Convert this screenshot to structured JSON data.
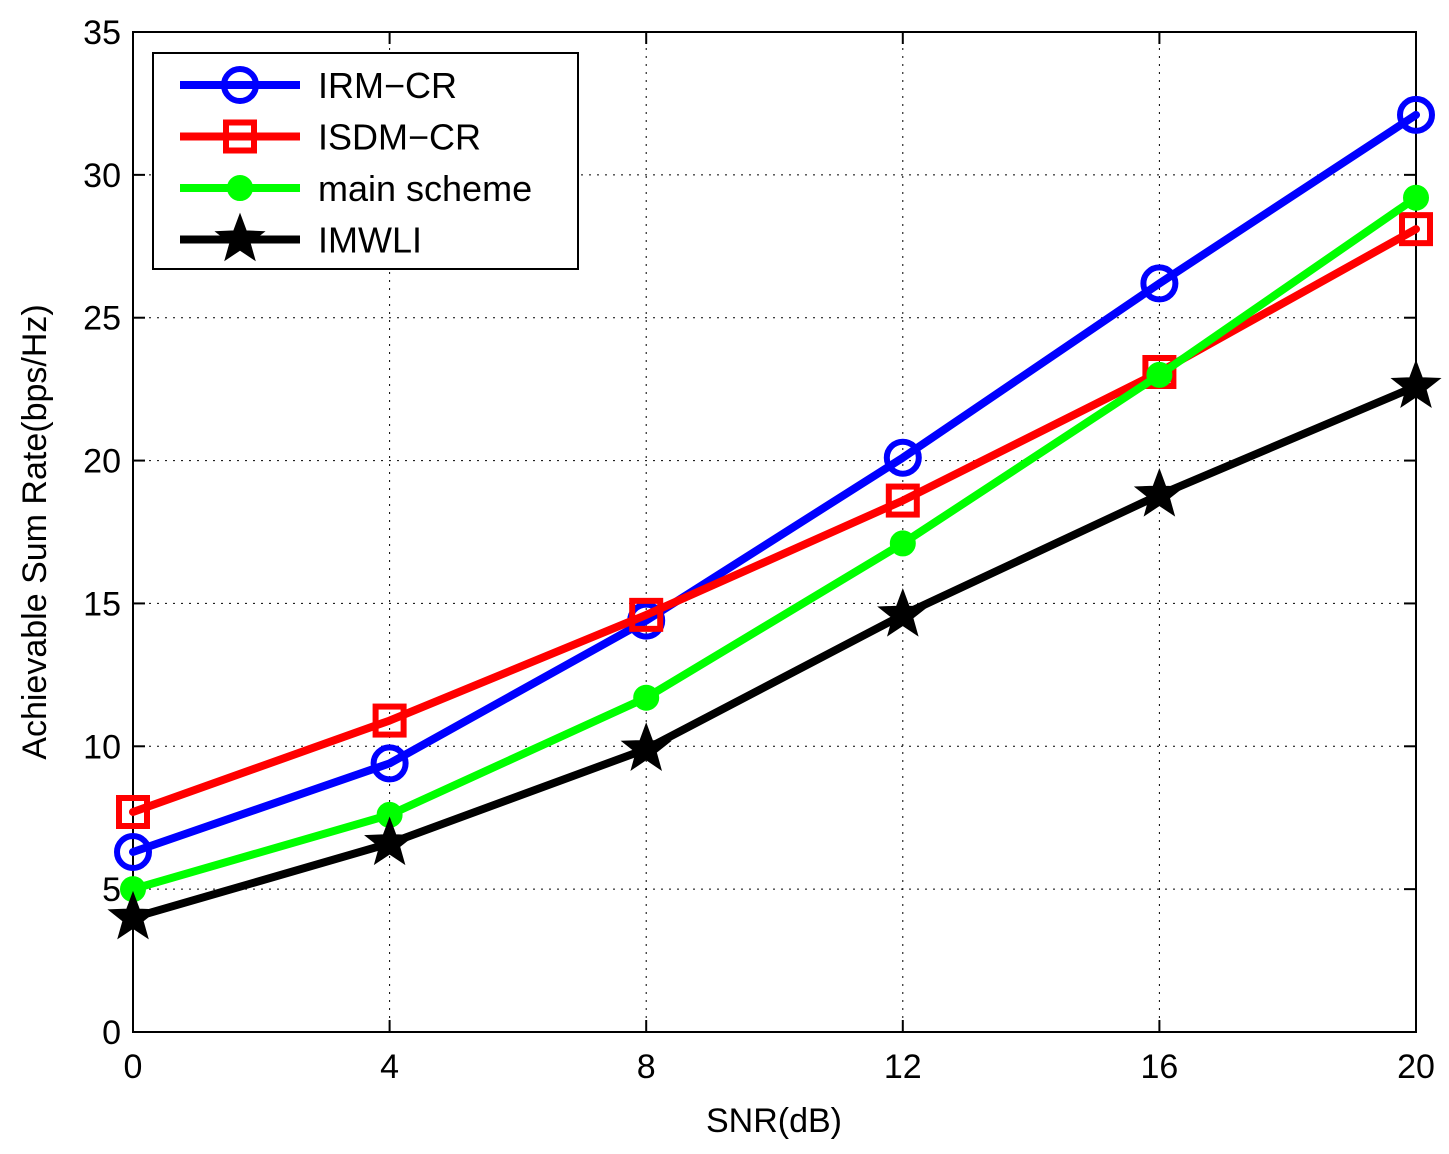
{
  "chart_data": {
    "type": "line",
    "title": "",
    "xlabel": "SNR(dB)",
    "ylabel": "Achievable Sum Rate(bps/Hz)",
    "x": [
      0,
      4,
      8,
      12,
      16,
      20
    ],
    "xlim": [
      0,
      20
    ],
    "ylim": [
      0,
      35
    ],
    "xticks": [
      "0",
      "4",
      "8",
      "12",
      "16",
      "20"
    ],
    "yticks": [
      "0",
      "5",
      "10",
      "15",
      "20",
      "25",
      "30",
      "35"
    ],
    "grid": true,
    "legend_position": "top-left",
    "series": [
      {
        "name": "IRM−CR",
        "color": "#0000ff",
        "marker": "circle-open",
        "values": [
          6.3,
          9.4,
          14.4,
          20.1,
          26.2,
          32.1
        ]
      },
      {
        "name": "ISDM−CR",
        "color": "#ff0000",
        "marker": "square-open",
        "values": [
          7.7,
          10.9,
          14.6,
          18.6,
          23.1,
          28.1
        ]
      },
      {
        "name": "main scheme",
        "color": "#00ff00",
        "marker": "circle-filled",
        "values": [
          5.0,
          7.6,
          11.7,
          17.1,
          23.0,
          29.2
        ]
      },
      {
        "name": "IMWLI",
        "color": "#000000",
        "marker": "star",
        "values": [
          4.0,
          6.6,
          9.9,
          14.6,
          18.8,
          22.6
        ]
      }
    ]
  }
}
